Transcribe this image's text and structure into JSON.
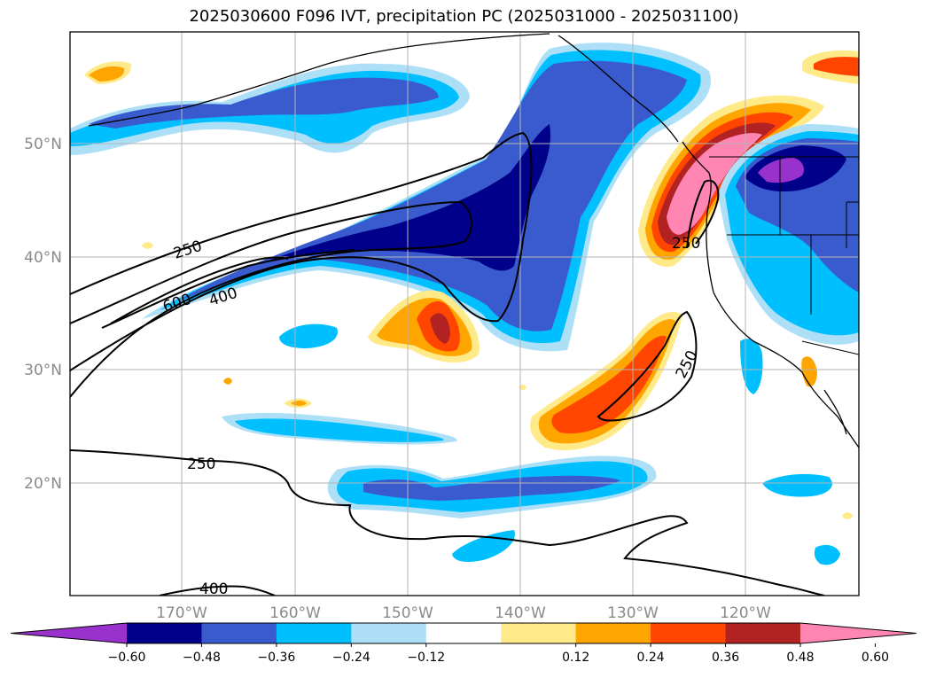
{
  "title": "2025030600 F096 IVT, precipitation PC (2025031000 - 2025031100)",
  "latitude_labels": [
    "50°N",
    "40°N",
    "30°N",
    "20°N"
  ],
  "longitude_labels": [
    "170°W",
    "160°W",
    "150°W",
    "140°W",
    "130°W",
    "120°W"
  ],
  "contour_labels": [
    "250",
    "600",
    "400",
    "250",
    "250",
    "250",
    "400"
  ],
  "colorbar": {
    "tick_labels": [
      "−0.60",
      "−0.48",
      "−0.36",
      "−0.24",
      "−0.12",
      "0.12",
      "0.24",
      "0.36",
      "0.48",
      "0.60"
    ],
    "colors": [
      "#9932CC",
      "#00008B",
      "#3A5BCD",
      "#00BFFF",
      "#ADE0F7",
      "#FFFFFF",
      "#FFEA8A",
      "#FFA500",
      "#FF4500",
      "#B22222",
      "#FF85B3"
    ]
  },
  "palette": {
    "pos_low": "#FFEA8A",
    "pos_mid": "#FFA500",
    "pos_high": "#FF4500",
    "pos_higher": "#B22222",
    "pos_max": "#FF85B3",
    "neg_low": "#ADE0F7",
    "neg_mid": "#00BFFF",
    "neg_high": "#3A5BCD",
    "neg_higher": "#00008B",
    "neg_max": "#9932CC"
  }
}
